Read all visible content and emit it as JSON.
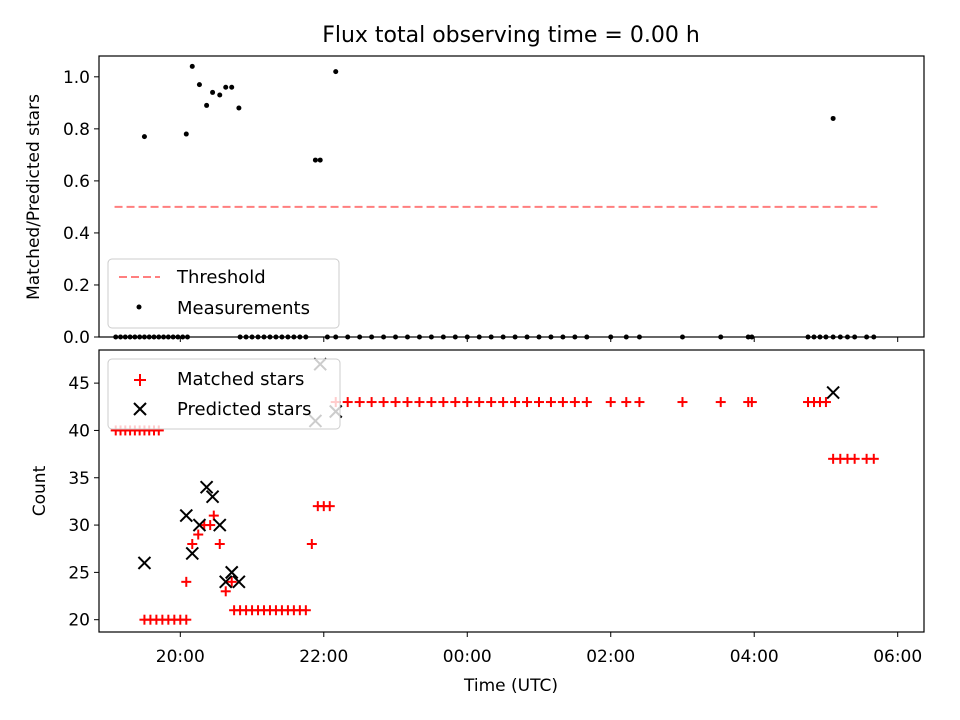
{
  "chart_data": [
    {
      "type": "scatter",
      "title": "Flux total observing time = 0.00 h",
      "xlabel": "",
      "ylabel": "Matched/Predicted stars",
      "xlim": [
        "18:52",
        "06:22"
      ],
      "ylim": [
        0,
        1.08
      ],
      "yticks": [
        0.0,
        0.2,
        0.4,
        0.6,
        0.8,
        1.0
      ],
      "ytick_labels": [
        "0.0",
        "0.2",
        "0.4",
        "0.6",
        "0.8",
        "1.0"
      ],
      "legend_position": "lower-left",
      "series": [
        {
          "name": "Threshold",
          "kind": "dashed-line",
          "color": "#ff7f7f",
          "points": [
            {
              "x": "19:05",
              "y": 0.5
            },
            {
              "x": "05:43",
              "y": 0.5
            }
          ]
        },
        {
          "name": "Measurements",
          "kind": "dot",
          "color": "#000000",
          "points": [
            {
              "x": "19:30",
              "y": 0.77
            },
            {
              "x": "20:05",
              "y": 0.78
            },
            {
              "x": "20:10",
              "y": 1.04
            },
            {
              "x": "20:16",
              "y": 0.97
            },
            {
              "x": "20:22",
              "y": 0.89
            },
            {
              "x": "20:27",
              "y": 0.94
            },
            {
              "x": "20:33",
              "y": 0.93
            },
            {
              "x": "20:38",
              "y": 0.96
            },
            {
              "x": "20:43",
              "y": 0.96
            },
            {
              "x": "20:49",
              "y": 0.88
            },
            {
              "x": "21:53",
              "y": 0.68
            },
            {
              "x": "21:57",
              "y": 0.68
            },
            {
              "x": "22:10",
              "y": 1.02
            },
            {
              "x": "05:06",
              "y": 0.84
            },
            {
              "x": "19:06",
              "y": 0.0
            },
            {
              "x": "19:10",
              "y": 0.0
            },
            {
              "x": "19:14",
              "y": 0.0
            },
            {
              "x": "19:18",
              "y": 0.0
            },
            {
              "x": "19:22",
              "y": 0.0
            },
            {
              "x": "19:26",
              "y": 0.0
            },
            {
              "x": "19:30",
              "y": 0.0
            },
            {
              "x": "19:34",
              "y": 0.0
            },
            {
              "x": "19:38",
              "y": 0.0
            },
            {
              "x": "19:42",
              "y": 0.0
            },
            {
              "x": "19:46",
              "y": 0.0
            },
            {
              "x": "19:50",
              "y": 0.0
            },
            {
              "x": "19:54",
              "y": 0.0
            },
            {
              "x": "19:58",
              "y": 0.0
            },
            {
              "x": "20:02",
              "y": 0.0
            },
            {
              "x": "20:06",
              "y": 0.0
            },
            {
              "x": "20:50",
              "y": 0.0
            },
            {
              "x": "20:55",
              "y": 0.0
            },
            {
              "x": "21:00",
              "y": 0.0
            },
            {
              "x": "21:05",
              "y": 0.0
            },
            {
              "x": "21:10",
              "y": 0.0
            },
            {
              "x": "21:15",
              "y": 0.0
            },
            {
              "x": "21:20",
              "y": 0.0
            },
            {
              "x": "21:25",
              "y": 0.0
            },
            {
              "x": "21:30",
              "y": 0.0
            },
            {
              "x": "21:35",
              "y": 0.0
            },
            {
              "x": "21:40",
              "y": 0.0
            },
            {
              "x": "21:45",
              "y": 0.0
            },
            {
              "x": "22:03",
              "y": 0.0
            },
            {
              "x": "22:10",
              "y": 0.0
            },
            {
              "x": "22:20",
              "y": 0.0
            },
            {
              "x": "22:30",
              "y": 0.0
            },
            {
              "x": "22:40",
              "y": 0.0
            },
            {
              "x": "22:50",
              "y": 0.0
            },
            {
              "x": "23:00",
              "y": 0.0
            },
            {
              "x": "23:10",
              "y": 0.0
            },
            {
              "x": "23:20",
              "y": 0.0
            },
            {
              "x": "23:30",
              "y": 0.0
            },
            {
              "x": "23:40",
              "y": 0.0
            },
            {
              "x": "23:50",
              "y": 0.0
            },
            {
              "x": "00:00",
              "y": 0.0
            },
            {
              "x": "00:10",
              "y": 0.0
            },
            {
              "x": "00:20",
              "y": 0.0
            },
            {
              "x": "00:30",
              "y": 0.0
            },
            {
              "x": "00:40",
              "y": 0.0
            },
            {
              "x": "00:50",
              "y": 0.0
            },
            {
              "x": "01:00",
              "y": 0.0
            },
            {
              "x": "01:10",
              "y": 0.0
            },
            {
              "x": "01:20",
              "y": 0.0
            },
            {
              "x": "01:30",
              "y": 0.0
            },
            {
              "x": "01:40",
              "y": 0.0
            },
            {
              "x": "02:00",
              "y": 0.0
            },
            {
              "x": "02:13",
              "y": 0.0
            },
            {
              "x": "02:24",
              "y": 0.0
            },
            {
              "x": "03:00",
              "y": 0.0
            },
            {
              "x": "03:32",
              "y": 0.0
            },
            {
              "x": "03:55",
              "y": 0.0
            },
            {
              "x": "03:58",
              "y": 0.0
            },
            {
              "x": "04:45",
              "y": 0.0
            },
            {
              "x": "04:50",
              "y": 0.0
            },
            {
              "x": "04:55",
              "y": 0.0
            },
            {
              "x": "05:00",
              "y": 0.0
            },
            {
              "x": "05:06",
              "y": 0.0
            },
            {
              "x": "05:12",
              "y": 0.0
            },
            {
              "x": "05:18",
              "y": 0.0
            },
            {
              "x": "05:24",
              "y": 0.0
            },
            {
              "x": "05:34",
              "y": 0.0
            },
            {
              "x": "05:40",
              "y": 0.0
            }
          ]
        }
      ]
    },
    {
      "type": "scatter",
      "title": "",
      "xlabel": "Time (UTC)",
      "ylabel": "Count",
      "xlim": [
        "18:52",
        "06:22"
      ],
      "xticks": [
        "20:00",
        "22:00",
        "00:00",
        "02:00",
        "04:00",
        "06:00"
      ],
      "ylim": [
        18.7,
        48.5
      ],
      "yticks": [
        20,
        25,
        30,
        35,
        40,
        45
      ],
      "ytick_labels": [
        "20",
        "25",
        "30",
        "35",
        "40",
        "45"
      ],
      "legend_position": "upper-left",
      "series": [
        {
          "name": "Matched stars",
          "kind": "plus",
          "color": "#ff0000",
          "points": [
            {
              "x": "19:06",
              "y": 40
            },
            {
              "x": "19:10",
              "y": 40
            },
            {
              "x": "19:14",
              "y": 40
            },
            {
              "x": "19:18",
              "y": 40
            },
            {
              "x": "19:22",
              "y": 40
            },
            {
              "x": "19:26",
              "y": 40
            },
            {
              "x": "19:30",
              "y": 40
            },
            {
              "x": "19:34",
              "y": 40
            },
            {
              "x": "19:38",
              "y": 40
            },
            {
              "x": "19:42",
              "y": 40
            },
            {
              "x": "19:30",
              "y": 20
            },
            {
              "x": "19:35",
              "y": 20
            },
            {
              "x": "19:40",
              "y": 20
            },
            {
              "x": "19:45",
              "y": 20
            },
            {
              "x": "19:50",
              "y": 20
            },
            {
              "x": "19:55",
              "y": 20
            },
            {
              "x": "20:00",
              "y": 20
            },
            {
              "x": "20:05",
              "y": 20
            },
            {
              "x": "20:05",
              "y": 24
            },
            {
              "x": "20:10",
              "y": 28
            },
            {
              "x": "20:15",
              "y": 29
            },
            {
              "x": "20:20",
              "y": 30
            },
            {
              "x": "20:25",
              "y": 30
            },
            {
              "x": "20:28",
              "y": 31
            },
            {
              "x": "20:33",
              "y": 28
            },
            {
              "x": "20:38",
              "y": 23
            },
            {
              "x": "20:43",
              "y": 24
            },
            {
              "x": "20:45",
              "y": 21
            },
            {
              "x": "20:50",
              "y": 21
            },
            {
              "x": "20:55",
              "y": 21
            },
            {
              "x": "21:00",
              "y": 21
            },
            {
              "x": "21:05",
              "y": 21
            },
            {
              "x": "21:10",
              "y": 21
            },
            {
              "x": "21:15",
              "y": 21
            },
            {
              "x": "21:20",
              "y": 21
            },
            {
              "x": "21:25",
              "y": 21
            },
            {
              "x": "21:30",
              "y": 21
            },
            {
              "x": "21:35",
              "y": 21
            },
            {
              "x": "21:40",
              "y": 21
            },
            {
              "x": "21:45",
              "y": 21
            },
            {
              "x": "21:50",
              "y": 28
            },
            {
              "x": "21:55",
              "y": 32
            },
            {
              "x": "22:00",
              "y": 32
            },
            {
              "x": "22:05",
              "y": 32
            },
            {
              "x": "22:10",
              "y": 43
            },
            {
              "x": "22:20",
              "y": 43
            },
            {
              "x": "22:30",
              "y": 43
            },
            {
              "x": "22:40",
              "y": 43
            },
            {
              "x": "22:50",
              "y": 43
            },
            {
              "x": "23:00",
              "y": 43
            },
            {
              "x": "23:10",
              "y": 43
            },
            {
              "x": "23:20",
              "y": 43
            },
            {
              "x": "23:30",
              "y": 43
            },
            {
              "x": "23:40",
              "y": 43
            },
            {
              "x": "23:50",
              "y": 43
            },
            {
              "x": "00:00",
              "y": 43
            },
            {
              "x": "00:10",
              "y": 43
            },
            {
              "x": "00:20",
              "y": 43
            },
            {
              "x": "00:30",
              "y": 43
            },
            {
              "x": "00:40",
              "y": 43
            },
            {
              "x": "00:50",
              "y": 43
            },
            {
              "x": "01:00",
              "y": 43
            },
            {
              "x": "01:10",
              "y": 43
            },
            {
              "x": "01:20",
              "y": 43
            },
            {
              "x": "01:30",
              "y": 43
            },
            {
              "x": "01:40",
              "y": 43
            },
            {
              "x": "02:00",
              "y": 43
            },
            {
              "x": "02:13",
              "y": 43
            },
            {
              "x": "02:24",
              "y": 43
            },
            {
              "x": "03:00",
              "y": 43
            },
            {
              "x": "03:32",
              "y": 43
            },
            {
              "x": "03:55",
              "y": 43
            },
            {
              "x": "03:58",
              "y": 43
            },
            {
              "x": "04:45",
              "y": 43
            },
            {
              "x": "04:50",
              "y": 43
            },
            {
              "x": "04:55",
              "y": 43
            },
            {
              "x": "05:00",
              "y": 43
            },
            {
              "x": "05:06",
              "y": 37
            },
            {
              "x": "05:12",
              "y": 37
            },
            {
              "x": "05:18",
              "y": 37
            },
            {
              "x": "05:24",
              "y": 37
            },
            {
              "x": "05:34",
              "y": 37
            },
            {
              "x": "05:40",
              "y": 37
            }
          ]
        },
        {
          "name": "Predicted stars",
          "kind": "cross",
          "color": "#000000",
          "points": [
            {
              "x": "19:30",
              "y": 26
            },
            {
              "x": "20:05",
              "y": 31
            },
            {
              "x": "20:10",
              "y": 27
            },
            {
              "x": "20:16",
              "y": 30
            },
            {
              "x": "20:22",
              "y": 34
            },
            {
              "x": "20:27",
              "y": 33
            },
            {
              "x": "20:33",
              "y": 30
            },
            {
              "x": "20:38",
              "y": 24
            },
            {
              "x": "20:43",
              "y": 25
            },
            {
              "x": "20:49",
              "y": 24
            },
            {
              "x": "21:53",
              "y": 41
            },
            {
              "x": "21:57",
              "y": 47
            },
            {
              "x": "22:10",
              "y": 42
            },
            {
              "x": "05:06",
              "y": 44
            }
          ]
        }
      ]
    }
  ]
}
